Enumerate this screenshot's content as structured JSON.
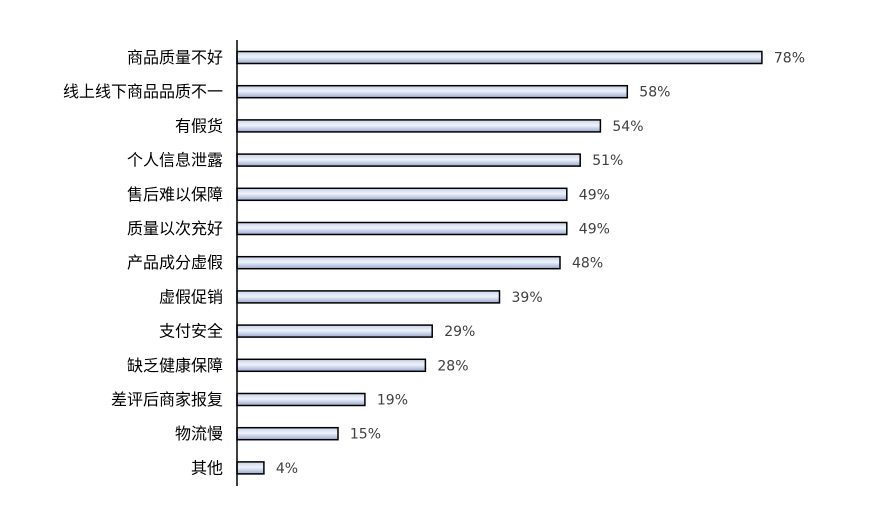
{
  "chart_data": {
    "type": "bar",
    "orientation": "horizontal",
    "categories": [
      "商品质量不好",
      "线上线下商品品质不一",
      "有假货",
      "个人信息泄露",
      "售后难以保障",
      "质量以次充好",
      "产品成分虚假",
      "虚假促销",
      "支付安全",
      "缺乏健康保障",
      "差评后商家报复",
      "物流慢",
      "其他"
    ],
    "values": [
      78,
      58,
      54,
      51,
      49,
      49,
      48,
      39,
      29,
      28,
      19,
      15,
      4
    ],
    "value_labels": [
      "78%",
      "58%",
      "54%",
      "51%",
      "49%",
      "49%",
      "48%",
      "39%",
      "29%",
      "28%",
      "19%",
      "15%",
      "4%"
    ],
    "unit": "%",
    "xlim": [
      0,
      100
    ],
    "title": "",
    "xlabel": "",
    "ylabel": "",
    "grid": false,
    "legend": "none",
    "bar_fill_top": "#c9d3ea",
    "bar_fill_mid": "#eef2fa",
    "bar_fill_bottom": "#9aa9cf",
    "bar_stroke": "#000000",
    "axis_color": "#000000",
    "value_label_color": "#404040"
  }
}
